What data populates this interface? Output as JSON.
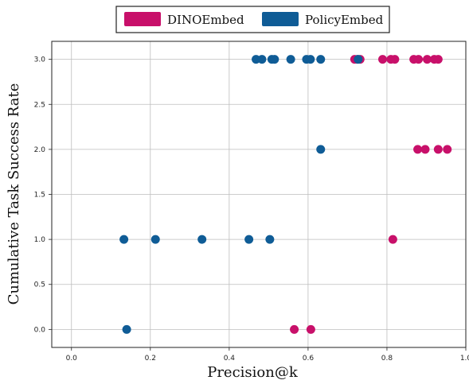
{
  "chart_data": {
    "type": "scatter",
    "xlabel": "Precision@k",
    "ylabel": "Cumulative Task Success Rate",
    "xlim": [
      -0.05,
      1.0
    ],
    "ylim": [
      -0.2,
      3.2
    ],
    "xticks": [
      "0.0",
      "0.2",
      "0.4",
      "0.6",
      "0.8",
      "1.0"
    ],
    "yticks": [
      "0.0",
      "0.5",
      "1.0",
      "1.5",
      "2.0",
      "2.5",
      "3.0"
    ],
    "grid": true,
    "legend_position": "top-center",
    "series": [
      {
        "name": "DINOEmbed",
        "color": "#c8106a",
        "points": [
          {
            "x": 0.565,
            "y": 0.0
          },
          {
            "x": 0.607,
            "y": 0.0
          },
          {
            "x": 0.815,
            "y": 1.0
          },
          {
            "x": 0.878,
            "y": 2.0
          },
          {
            "x": 0.897,
            "y": 2.0
          },
          {
            "x": 0.93,
            "y": 2.0
          },
          {
            "x": 0.953,
            "y": 2.0
          },
          {
            "x": 0.718,
            "y": 3.0
          },
          {
            "x": 0.725,
            "y": 3.0
          },
          {
            "x": 0.732,
            "y": 3.0
          },
          {
            "x": 0.789,
            "y": 3.0
          },
          {
            "x": 0.81,
            "y": 3.0
          },
          {
            "x": 0.82,
            "y": 3.0
          },
          {
            "x": 0.868,
            "y": 3.0
          },
          {
            "x": 0.88,
            "y": 3.0
          },
          {
            "x": 0.902,
            "y": 3.0
          },
          {
            "x": 0.92,
            "y": 3.0
          },
          {
            "x": 0.93,
            "y": 3.0
          }
        ]
      },
      {
        "name": "PolicyEmbed",
        "color": "#0f5c96",
        "points": [
          {
            "x": 0.14,
            "y": 0.0
          },
          {
            "x": 0.133,
            "y": 1.0
          },
          {
            "x": 0.213,
            "y": 1.0
          },
          {
            "x": 0.331,
            "y": 1.0
          },
          {
            "x": 0.45,
            "y": 1.0
          },
          {
            "x": 0.503,
            "y": 1.0
          },
          {
            "x": 0.632,
            "y": 2.0
          },
          {
            "x": 0.468,
            "y": 3.0
          },
          {
            "x": 0.483,
            "y": 3.0
          },
          {
            "x": 0.508,
            "y": 3.0
          },
          {
            "x": 0.515,
            "y": 3.0
          },
          {
            "x": 0.556,
            "y": 3.0
          },
          {
            "x": 0.596,
            "y": 3.0
          },
          {
            "x": 0.606,
            "y": 3.0
          },
          {
            "x": 0.632,
            "y": 3.0
          },
          {
            "x": 0.727,
            "y": 3.0
          }
        ]
      }
    ]
  }
}
